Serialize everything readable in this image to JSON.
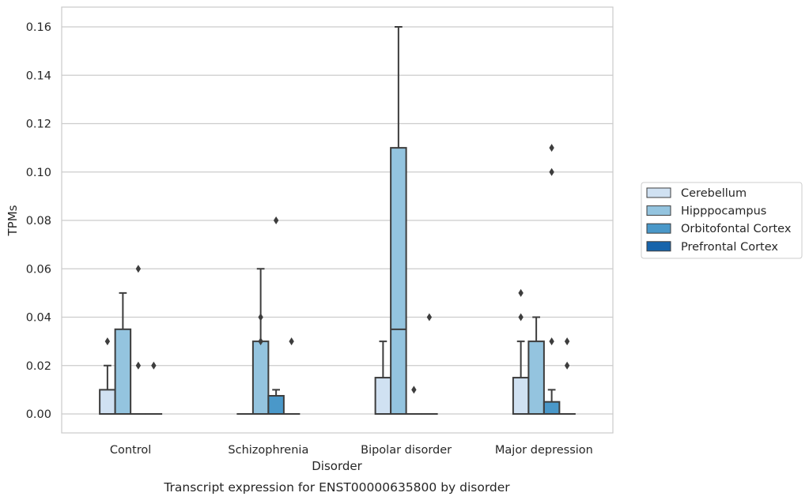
{
  "chart_data": {
    "type": "boxplot",
    "title": "",
    "caption": "Transcript expression for ENST00000635800 by disorder",
    "xlabel": "Disorder",
    "ylabel": "TPMs",
    "ylim": [
      -0.008,
      0.168
    ],
    "yticks": [
      0.0,
      0.02,
      0.04,
      0.06,
      0.08,
      0.1,
      0.12,
      0.14,
      0.16
    ],
    "ytick_labels": [
      "0.00",
      "0.02",
      "0.04",
      "0.06",
      "0.08",
      "0.10",
      "0.12",
      "0.14",
      "0.16"
    ],
    "grid": "horizontal",
    "legend_position": "right, outside",
    "categories": [
      "Control",
      "Schizophrenia",
      "Bipolar disorder",
      "Major depression"
    ],
    "series": [
      {
        "name": "Cerebellum",
        "color": "#d0e1f2",
        "boxes": [
          {
            "q1": 0.0,
            "median": 0.0,
            "q3": 0.01,
            "whisker_low": 0.0,
            "whisker_high": 0.02,
            "outliers": [
              0.03
            ]
          },
          {
            "q1": 0.0,
            "median": 0.0,
            "q3": 0.0,
            "whisker_low": 0.0,
            "whisker_high": 0.0,
            "outliers": []
          },
          {
            "q1": 0.0,
            "median": 0.0,
            "q3": 0.015,
            "whisker_low": 0.0,
            "whisker_high": 0.03,
            "outliers": []
          },
          {
            "q1": 0.0,
            "median": 0.0,
            "q3": 0.015,
            "whisker_low": 0.0,
            "whisker_high": 0.03,
            "outliers": [
              0.04,
              0.05
            ]
          }
        ]
      },
      {
        "name": "Hipppocampus",
        "color": "#94c4df",
        "boxes": [
          {
            "q1": 0.0,
            "median": 0.0,
            "q3": 0.035,
            "whisker_low": 0.0,
            "whisker_high": 0.05,
            "outliers": []
          },
          {
            "q1": 0.0,
            "median": 0.0,
            "q3": 0.03,
            "whisker_low": 0.0,
            "whisker_high": 0.06,
            "outliers": [
              0.03,
              0.04
            ]
          },
          {
            "q1": 0.0,
            "median": 0.035,
            "q3": 0.11,
            "whisker_low": 0.0,
            "whisker_high": 0.16,
            "outliers": []
          },
          {
            "q1": 0.0,
            "median": 0.0,
            "q3": 0.03,
            "whisker_low": 0.0,
            "whisker_high": 0.04,
            "outliers": []
          }
        ]
      },
      {
        "name": "Orbitofontal Cortex",
        "color": "#4a98c9",
        "boxes": [
          {
            "q1": 0.0,
            "median": 0.0,
            "q3": 0.0,
            "whisker_low": 0.0,
            "whisker_high": 0.0,
            "outliers": [
              0.02,
              0.06
            ]
          },
          {
            "q1": 0.0,
            "median": 0.0,
            "q3": 0.0075,
            "whisker_low": 0.0,
            "whisker_high": 0.01,
            "outliers": [
              0.08
            ]
          },
          {
            "q1": 0.0,
            "median": 0.0,
            "q3": 0.0,
            "whisker_low": 0.0,
            "whisker_high": 0.0,
            "outliers": [
              0.01
            ]
          },
          {
            "q1": 0.0,
            "median": 0.0,
            "q3": 0.005,
            "whisker_low": 0.0,
            "whisker_high": 0.01,
            "outliers": [
              0.03,
              0.1,
              0.11
            ]
          }
        ]
      },
      {
        "name": "Prefrontal Cortex",
        "color": "#1764ab",
        "boxes": [
          {
            "q1": 0.0,
            "median": 0.0,
            "q3": 0.0,
            "whisker_low": 0.0,
            "whisker_high": 0.0,
            "outliers": [
              0.02
            ]
          },
          {
            "q1": 0.0,
            "median": 0.0,
            "q3": 0.0,
            "whisker_low": 0.0,
            "whisker_high": 0.0,
            "outliers": [
              0.03
            ]
          },
          {
            "q1": 0.0,
            "median": 0.0,
            "q3": 0.0,
            "whisker_low": 0.0,
            "whisker_high": 0.0,
            "outliers": [
              0.04
            ]
          },
          {
            "q1": 0.0,
            "median": 0.0,
            "q3": 0.0,
            "whisker_low": 0.0,
            "whisker_high": 0.0,
            "outliers": [
              0.02,
              0.03
            ]
          }
        ]
      }
    ]
  }
}
